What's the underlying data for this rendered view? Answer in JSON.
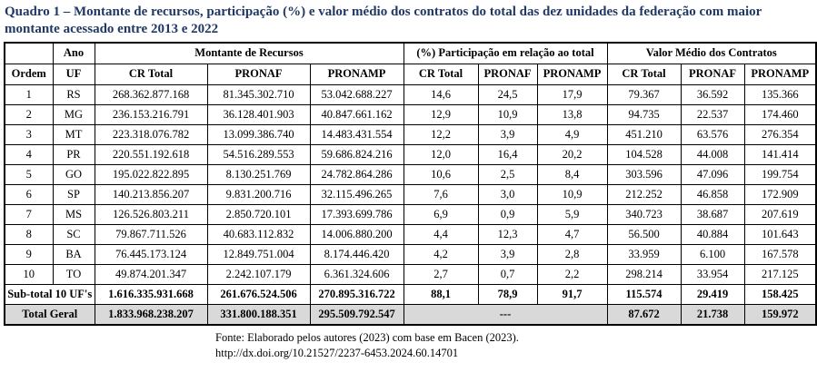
{
  "title": "Quadro 1 – Montante de recursos, participação (%) e valor médio dos contratos do total das dez unidades da federação com maior montante acessado entre 2013 e 2022",
  "colors": {
    "title_text": "#1F3864",
    "total_row_bg": "#D9D9D9",
    "border": "#000000"
  },
  "table": {
    "group_headers": {
      "blank": "",
      "ano": "Ano",
      "montante": "Montante de Recursos",
      "participacao": "(%) Participação em relação ao total",
      "valor_medio": "Valor Médio dos Contratos"
    },
    "sub_headers": [
      "Ordem",
      "UF",
      "CR Total",
      "PRONAF",
      "PRONAMP",
      "CR Total",
      "PRONAF",
      "PRONAMP",
      "CR Total",
      "PRONAF",
      "PRONAMP"
    ],
    "rows": [
      [
        "1",
        "RS",
        "268.362.877.168",
        "81.345.302.710",
        "53.042.688.227",
        "14,6",
        "24,5",
        "17,9",
        "79.367",
        "36.592",
        "135.366"
      ],
      [
        "2",
        "MG",
        "236.153.216.791",
        "36.128.401.903",
        "40.847.661.162",
        "12,9",
        "10,9",
        "13,8",
        "94.735",
        "22.537",
        "174.460"
      ],
      [
        "3",
        "MT",
        "223.318.076.782",
        "13.099.386.740",
        "14.483.431.554",
        "12,2",
        "3,9",
        "4,9",
        "451.210",
        "63.576",
        "276.354"
      ],
      [
        "4",
        "PR",
        "220.551.192.618",
        "54.516.289.553",
        "59.686.824.216",
        "12,0",
        "16,4",
        "20,2",
        "104.528",
        "44.008",
        "141.414"
      ],
      [
        "5",
        "GO",
        "195.022.822.895",
        "8.130.251.769",
        "24.782.864.286",
        "10,6",
        "2,5",
        "8,4",
        "303.596",
        "47.096",
        "199.754"
      ],
      [
        "6",
        "SP",
        "140.213.856.207",
        "9.831.200.716",
        "32.115.496.265",
        "7,6",
        "3,0",
        "10,9",
        "212.252",
        "46.858",
        "172.909"
      ],
      [
        "7",
        "MS",
        "126.526.803.211",
        "2.850.720.101",
        "17.393.699.786",
        "6,9",
        "0,9",
        "5,9",
        "340.723",
        "38.687",
        "207.619"
      ],
      [
        "8",
        "SC",
        "79.867.711.526",
        "40.683.112.832",
        "14.006.880.200",
        "4,4",
        "12,3",
        "4,7",
        "56.500",
        "40.884",
        "101.643"
      ],
      [
        "9",
        "BA",
        "76.445.173.124",
        "12.849.751.004",
        "8.174.446.420",
        "4,2",
        "3,9",
        "2,8",
        "33.959",
        "6.100",
        "167.578"
      ],
      [
        "10",
        "TO",
        "49.874.201.347",
        "2.242.107.179",
        "6.361.324.606",
        "2,7",
        "0,7",
        "2,2",
        "298.214",
        "33.954",
        "217.125"
      ]
    ],
    "subtotal": {
      "label": "Sub-total 10 UF's",
      "values": [
        "1.616.335.931.668",
        "261.676.524.506",
        "270.895.316.722",
        "88,1",
        "78,9",
        "91,7",
        "115.574",
        "29.419",
        "158.425"
      ]
    },
    "total": {
      "label": "Total Geral",
      "montante": [
        "1.833.968.238.207",
        "331.800.188.351",
        "295.509.792.547"
      ],
      "dash": "---",
      "valor_medio": [
        "87.672",
        "21.738",
        "159.972"
      ]
    }
  },
  "footer": {
    "source": "Fonte: Elaborado pelos autores (2023) com base em Bacen (2023).",
    "doi": "http://dx.doi.org/10.21527/2237-6453.2024.60.14701"
  }
}
